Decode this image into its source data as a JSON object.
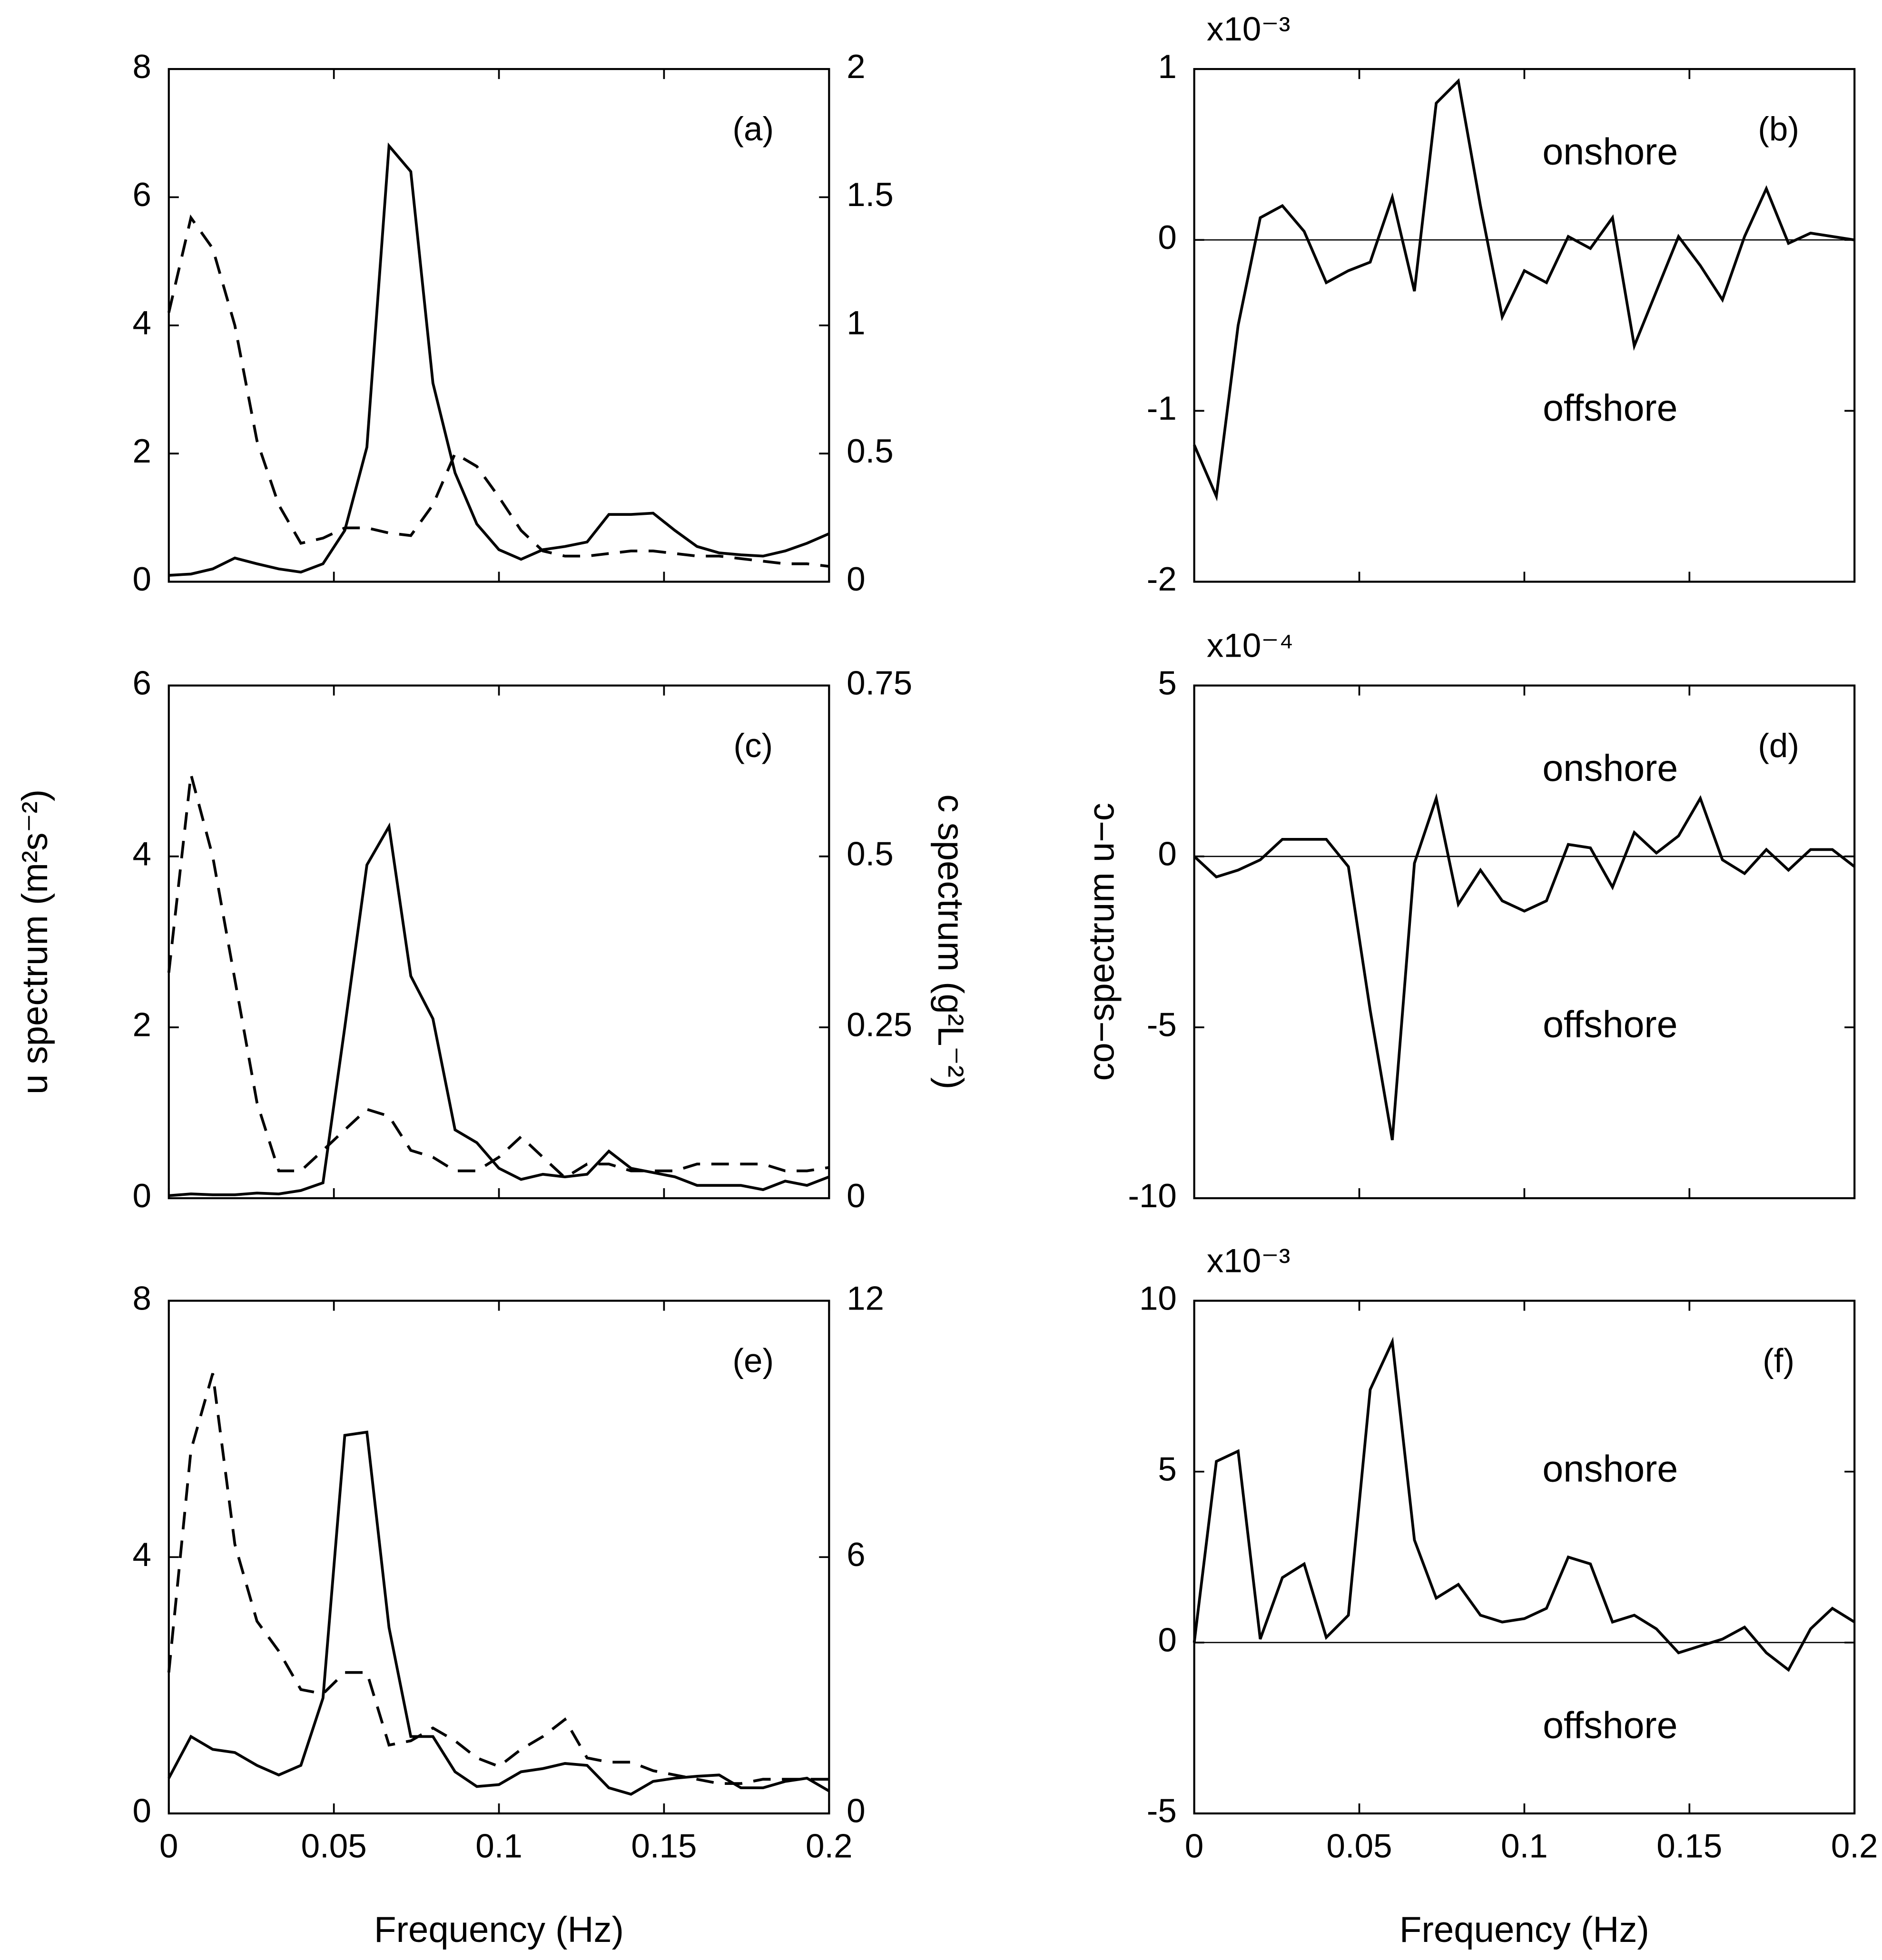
{
  "chart_data": [
    {
      "type": "line",
      "panel_label": "(a)",
      "x": [
        0,
        0.0067,
        0.0133,
        0.02,
        0.0267,
        0.0333,
        0.04,
        0.0467,
        0.0533,
        0.06,
        0.0667,
        0.0733,
        0.08,
        0.0867,
        0.0933,
        0.1,
        0.1067,
        0.1133,
        0.12,
        0.1267,
        0.1333,
        0.14,
        0.1467,
        0.1533,
        0.16,
        0.1667,
        0.1733,
        0.18,
        0.1867,
        0.1933,
        0.2
      ],
      "xlim": [
        0,
        0.2
      ],
      "xticks": [
        0,
        0.05,
        0.1,
        0.15,
        0.2
      ],
      "xtick_labels": false,
      "ylim": [
        0,
        8
      ],
      "yticks": [
        0,
        2,
        4,
        6,
        8
      ],
      "y2lim": [
        0,
        2
      ],
      "y2ticks": [
        0,
        0.5,
        1,
        1.5,
        2
      ],
      "series": [
        {
          "color": "#000000",
          "style": "solid",
          "values": [
            0.1,
            0.12,
            0.2,
            0.37,
            0.28,
            0.2,
            0.15,
            0.28,
            0.8,
            2.1,
            6.8,
            6.4,
            3.1,
            1.7,
            0.9,
            0.5,
            0.35,
            0.5,
            0.55,
            0.62,
            1.05,
            1.05,
            1.07,
            0.8,
            0.55,
            0.45,
            0.42,
            0.4,
            0.48,
            0.6,
            0.75
          ]
        },
        {
          "color": "#000000",
          "style": "dashed",
          "axis": "y2",
          "values": [
            1.05,
            1.42,
            1.3,
            1.0,
            0.55,
            0.3,
            0.15,
            0.17,
            0.21,
            0.21,
            0.19,
            0.18,
            0.3,
            0.5,
            0.45,
            0.33,
            0.2,
            0.12,
            0.1,
            0.1,
            0.11,
            0.12,
            0.12,
            0.11,
            0.1,
            0.1,
            0.09,
            0.08,
            0.07,
            0.07,
            0.06
          ]
        }
      ]
    },
    {
      "type": "line",
      "panel_label": "(b)",
      "multiplier": "x10⁻³",
      "annotations": [
        "onshore",
        "offshore"
      ],
      "zero_line": true,
      "x": [
        0,
        0.0067,
        0.0133,
        0.02,
        0.0267,
        0.0333,
        0.04,
        0.0467,
        0.0533,
        0.06,
        0.0667,
        0.0733,
        0.08,
        0.0867,
        0.0933,
        0.1,
        0.1067,
        0.1133,
        0.12,
        0.1267,
        0.1333,
        0.14,
        0.1467,
        0.1533,
        0.16,
        0.1667,
        0.1733,
        0.18,
        0.1867,
        0.1933,
        0.2
      ],
      "xlim": [
        0,
        0.2
      ],
      "xticks": [
        0,
        0.05,
        0.1,
        0.15,
        0.2
      ],
      "xtick_labels": false,
      "ylim": [
        -2,
        1
      ],
      "yticks": [
        -2,
        -1,
        0,
        1
      ],
      "series": [
        {
          "color": "#000000",
          "style": "solid",
          "values": [
            -1.2,
            -1.5,
            -0.5,
            0.13,
            0.2,
            0.05,
            -0.25,
            -0.18,
            -0.13,
            0.25,
            -0.3,
            0.8,
            0.93,
            0.2,
            -0.45,
            -0.18,
            -0.25,
            0.02,
            -0.05,
            0.13,
            -0.62,
            -0.3,
            0.02,
            -0.15,
            -0.35,
            0.02,
            0.3,
            -0.02,
            0.04,
            0.02,
            0
          ]
        }
      ]
    },
    {
      "type": "line",
      "panel_label": "(c)",
      "ylabel": "u spectrum (m²s⁻²)",
      "y2label": "c spectrum (g²L⁻²)",
      "x": [
        0,
        0.0067,
        0.0133,
        0.02,
        0.0267,
        0.0333,
        0.04,
        0.0467,
        0.0533,
        0.06,
        0.0667,
        0.0733,
        0.08,
        0.0867,
        0.0933,
        0.1,
        0.1067,
        0.1133,
        0.12,
        0.1267,
        0.1333,
        0.14,
        0.1467,
        0.1533,
        0.16,
        0.1667,
        0.1733,
        0.18,
        0.1867,
        0.1933,
        0.2
      ],
      "xlim": [
        0,
        0.2
      ],
      "xticks": [
        0,
        0.05,
        0.1,
        0.15,
        0.2
      ],
      "xtick_labels": false,
      "ylim": [
        0,
        6
      ],
      "yticks": [
        0,
        2,
        4,
        6
      ],
      "y2lim": [
        0,
        0.75
      ],
      "y2ticks": [
        0,
        0.25,
        0.5,
        0.75
      ],
      "series": [
        {
          "color": "#000000",
          "style": "solid",
          "values": [
            0.03,
            0.05,
            0.04,
            0.04,
            0.06,
            0.05,
            0.09,
            0.18,
            2.0,
            3.9,
            4.35,
            2.6,
            2.1,
            0.8,
            0.65,
            0.35,
            0.22,
            0.28,
            0.25,
            0.28,
            0.55,
            0.35,
            0.3,
            0.25,
            0.15,
            0.15,
            0.15,
            0.1,
            0.2,
            0.15,
            0.25
          ]
        },
        {
          "color": "#000000",
          "style": "dashed",
          "axis": "y2",
          "values": [
            0.33,
            0.62,
            0.5,
            0.32,
            0.14,
            0.04,
            0.04,
            0.07,
            0.1,
            0.13,
            0.12,
            0.07,
            0.06,
            0.04,
            0.04,
            0.06,
            0.09,
            0.06,
            0.03,
            0.05,
            0.05,
            0.04,
            0.04,
            0.04,
            0.05,
            0.05,
            0.05,
            0.05,
            0.04,
            0.04,
            0.045
          ]
        }
      ]
    },
    {
      "type": "line",
      "panel_label": "(d)",
      "multiplier": "x10⁻⁴",
      "annotations": [
        "onshore",
        "offshore"
      ],
      "zero_line": true,
      "ylabel": "co−spectrum u−c",
      "x": [
        0,
        0.0067,
        0.0133,
        0.02,
        0.0267,
        0.0333,
        0.04,
        0.0467,
        0.0533,
        0.06,
        0.0667,
        0.0733,
        0.08,
        0.0867,
        0.0933,
        0.1,
        0.1067,
        0.1133,
        0.12,
        0.1267,
        0.1333,
        0.14,
        0.1467,
        0.1533,
        0.16,
        0.1667,
        0.1733,
        0.18,
        0.1867,
        0.1933,
        0.2
      ],
      "xlim": [
        0,
        0.2
      ],
      "xticks": [
        0,
        0.05,
        0.1,
        0.15,
        0.2
      ],
      "xtick_labels": false,
      "ylim": [
        -10,
        5
      ],
      "yticks": [
        -10,
        -5,
        0,
        5
      ],
      "series": [
        {
          "color": "#000000",
          "style": "solid",
          "values": [
            0,
            -0.6,
            -0.4,
            -0.1,
            0.5,
            0.5,
            0.5,
            -0.3,
            -4.5,
            -8.3,
            -0.2,
            1.7,
            -1.4,
            -0.4,
            -1.3,
            -1.6,
            -1.3,
            0.35,
            0.25,
            -0.9,
            0.7,
            0.1,
            0.6,
            1.7,
            -0.1,
            -0.5,
            0.2,
            -0.4,
            0.2,
            0.2,
            -0.3
          ]
        }
      ]
    },
    {
      "type": "line",
      "panel_label": "(e)",
      "xlabel": "Frequency (Hz)",
      "x": [
        0,
        0.0067,
        0.0133,
        0.02,
        0.0267,
        0.0333,
        0.04,
        0.0467,
        0.0533,
        0.06,
        0.0667,
        0.0733,
        0.08,
        0.0867,
        0.0933,
        0.1,
        0.1067,
        0.1133,
        0.12,
        0.1267,
        0.1333,
        0.14,
        0.1467,
        0.1533,
        0.16,
        0.1667,
        0.1733,
        0.18,
        0.1867,
        0.1933,
        0.2
      ],
      "xlim": [
        0,
        0.2
      ],
      "xticks": [
        0,
        0.05,
        0.1,
        0.15,
        0.2
      ],
      "ylim": [
        0,
        8
      ],
      "yticks": [
        0,
        4,
        8
      ],
      "y2lim": [
        0,
        12
      ],
      "y2ticks": [
        0,
        6,
        12
      ],
      "series": [
        {
          "color": "#000000",
          "style": "solid",
          "values": [
            0.55,
            1.2,
            1.0,
            0.95,
            0.75,
            0.6,
            0.75,
            1.8,
            5.9,
            5.95,
            2.9,
            1.2,
            1.2,
            0.65,
            0.42,
            0.45,
            0.65,
            0.7,
            0.78,
            0.75,
            0.4,
            0.3,
            0.5,
            0.55,
            0.58,
            0.6,
            0.4,
            0.4,
            0.5,
            0.55,
            0.35
          ]
        },
        {
          "color": "#000000",
          "style": "dashed",
          "axis": "y2",
          "values": [
            3.3,
            8.5,
            10.3,
            6.3,
            4.5,
            3.8,
            2.9,
            2.8,
            3.3,
            3.3,
            1.6,
            1.7,
            2.0,
            1.7,
            1.3,
            1.1,
            1.5,
            1.8,
            2.2,
            1.3,
            1.2,
            1.2,
            1.0,
            0.9,
            0.8,
            0.7,
            0.7,
            0.8,
            0.8,
            0.8,
            0.8
          ]
        }
      ]
    },
    {
      "type": "line",
      "panel_label": "(f)",
      "multiplier": "x10⁻³",
      "annotations": [
        "onshore",
        "offshore"
      ],
      "zero_line": true,
      "xlabel": "Frequency (Hz)",
      "x": [
        0,
        0.0067,
        0.0133,
        0.02,
        0.0267,
        0.0333,
        0.04,
        0.0467,
        0.0533,
        0.06,
        0.0667,
        0.0733,
        0.08,
        0.0867,
        0.0933,
        0.1,
        0.1067,
        0.1133,
        0.12,
        0.1267,
        0.1333,
        0.14,
        0.1467,
        0.1533,
        0.16,
        0.1667,
        0.1733,
        0.18,
        0.1867,
        0.1933,
        0.2
      ],
      "xlim": [
        0,
        0.2
      ],
      "xticks": [
        0,
        0.05,
        0.1,
        0.15,
        0.2
      ],
      "ylim": [
        -5,
        10
      ],
      "yticks": [
        -5,
        0,
        5,
        10
      ],
      "series": [
        {
          "color": "#000000",
          "style": "solid",
          "values": [
            0,
            5.3,
            5.6,
            0.1,
            1.9,
            2.3,
            0.15,
            0.8,
            7.4,
            8.8,
            3.0,
            1.3,
            1.7,
            0.8,
            0.6,
            0.7,
            1.0,
            2.5,
            2.3,
            0.6,
            0.8,
            0.4,
            -0.3,
            -0.1,
            0.1,
            0.45,
            -0.3,
            -0.8,
            0.4,
            1.0,
            0.6
          ]
        }
      ]
    }
  ]
}
